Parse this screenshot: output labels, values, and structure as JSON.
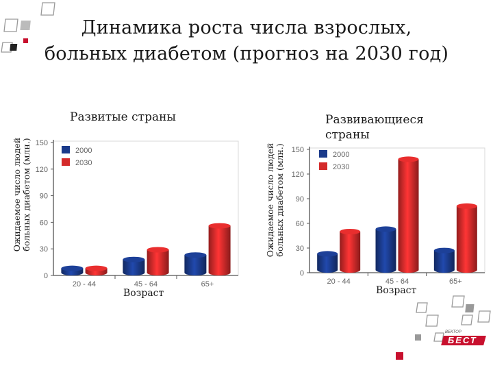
{
  "title_line1": "Динамика роста числа взрослых,",
  "title_line2": "больных диабетом (прогноз на 2030 год)",
  "colors": {
    "c2000": "#1a3a8a",
    "c2030": "#d42a2a",
    "accent": "#c8102e"
  },
  "logo_text": "БЕСТ",
  "logo_small": "ВЕКТОР",
  "chart_data": [
    {
      "type": "bar",
      "title": "Развитые страны",
      "ylabel_line1": "Ожидаемое число людей",
      "ylabel_line2": "больных диабетом (млн.)",
      "xlabel": "Возраст",
      "categories": [
        "20 - 44",
        "45 - 64",
        "65+"
      ],
      "yticks": [
        "0",
        "30",
        "60",
        "90",
        "120",
        "150"
      ],
      "ylim": [
        0,
        150
      ],
      "series": [
        {
          "name": "2000",
          "values": [
            8,
            18,
            23
          ]
        },
        {
          "name": "2030",
          "values": [
            8,
            29,
            56
          ]
        }
      ]
    },
    {
      "type": "bar",
      "title_line1": "Развивающиеся",
      "title_line2": "страны",
      "ylabel_line1": "Ожидаемое число людей",
      "ylabel_line2": "больных диабетом (млн.)",
      "xlabel": "Возраст",
      "categories": [
        "20 - 44",
        "45 - 64",
        "65+"
      ],
      "yticks": [
        "0",
        "30",
        "60",
        "90",
        "120",
        "150"
      ],
      "ylim": [
        0,
        150
      ],
      "series": [
        {
          "name": "2000",
          "values": [
            23,
            53,
            27
          ]
        },
        {
          "name": "2030",
          "values": [
            50,
            138,
            81
          ]
        }
      ]
    }
  ]
}
